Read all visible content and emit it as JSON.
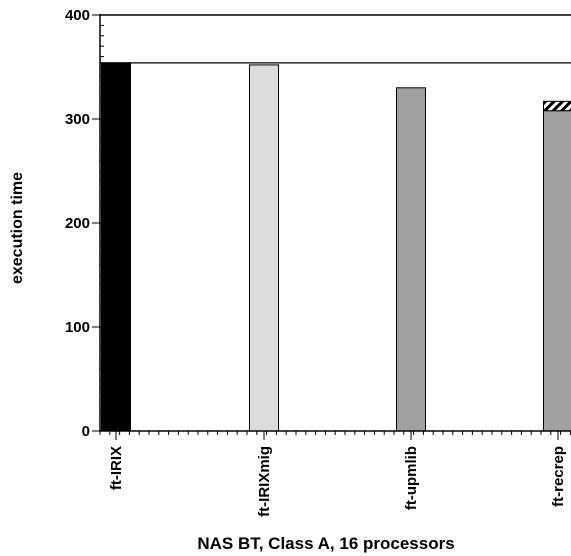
{
  "chart_data": {
    "type": "bar",
    "title": "",
    "xlabel": "NAS BT, Class A, 16 processors",
    "ylabel": "execution time",
    "ylim": [
      0,
      400
    ],
    "yticks": [
      0,
      100,
      200,
      300,
      400
    ],
    "grid": false,
    "reference_line": 354,
    "categories": [
      "ft-IRIX",
      "ft-IRIXmig",
      "ft-upmlib",
      "ft-recrep"
    ],
    "values": [
      354,
      352,
      330,
      317
    ],
    "stacked_segment": {
      "category": "ft-recrep",
      "base": 308,
      "top": 317,
      "pattern": "diagonal-hatch"
    },
    "colors": [
      "#000000",
      "#dcdcdc",
      "#a0a0a0",
      "#a0a0a0"
    ],
    "clipped_right": true
  }
}
